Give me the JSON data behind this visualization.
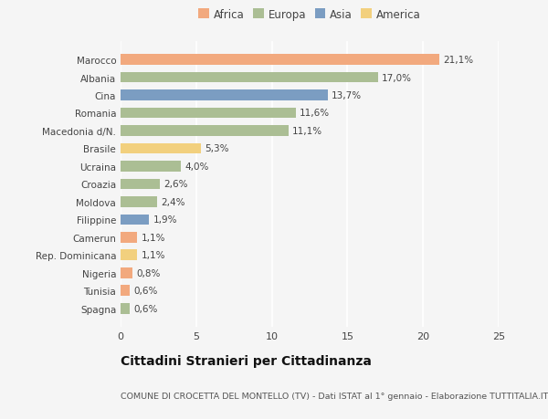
{
  "categories": [
    "Marocco",
    "Albania",
    "Cina",
    "Romania",
    "Macedonia d/N.",
    "Brasile",
    "Ucraina",
    "Croazia",
    "Moldova",
    "Filippine",
    "Camerun",
    "Rep. Dominicana",
    "Nigeria",
    "Tunisia",
    "Spagna"
  ],
  "values": [
    21.1,
    17.0,
    13.7,
    11.6,
    11.1,
    5.3,
    4.0,
    2.6,
    2.4,
    1.9,
    1.1,
    1.1,
    0.8,
    0.6,
    0.6
  ],
  "labels": [
    "21,1%",
    "17,0%",
    "13,7%",
    "11,6%",
    "11,1%",
    "5,3%",
    "4,0%",
    "2,6%",
    "2,4%",
    "1,9%",
    "1,1%",
    "1,1%",
    "0,8%",
    "0,6%",
    "0,6%"
  ],
  "continents": [
    "Africa",
    "Europa",
    "Asia",
    "Europa",
    "Europa",
    "America",
    "Europa",
    "Europa",
    "Europa",
    "Asia",
    "Africa",
    "America",
    "Africa",
    "Africa",
    "Europa"
  ],
  "colors": {
    "Africa": "#F2A97E",
    "Europa": "#ABBE94",
    "Asia": "#7B9DC2",
    "America": "#F2D07E"
  },
  "bg_color": "#f5f5f5",
  "title": "Cittadini Stranieri per Cittadinanza",
  "subtitle": "COMUNE DI CROCETTA DEL MONTELLO (TV) - Dati ISTAT al 1° gennaio - Elaborazione TUTTITALIA.IT",
  "xlim": [
    0,
    25
  ],
  "xticks": [
    0,
    5,
    10,
    15,
    20,
    25
  ],
  "bar_height": 0.6,
  "label_fontsize": 7.5,
  "title_fontsize": 10,
  "subtitle_fontsize": 6.8,
  "ytick_fontsize": 7.5,
  "xtick_fontsize": 8,
  "legend_fontsize": 8.5
}
